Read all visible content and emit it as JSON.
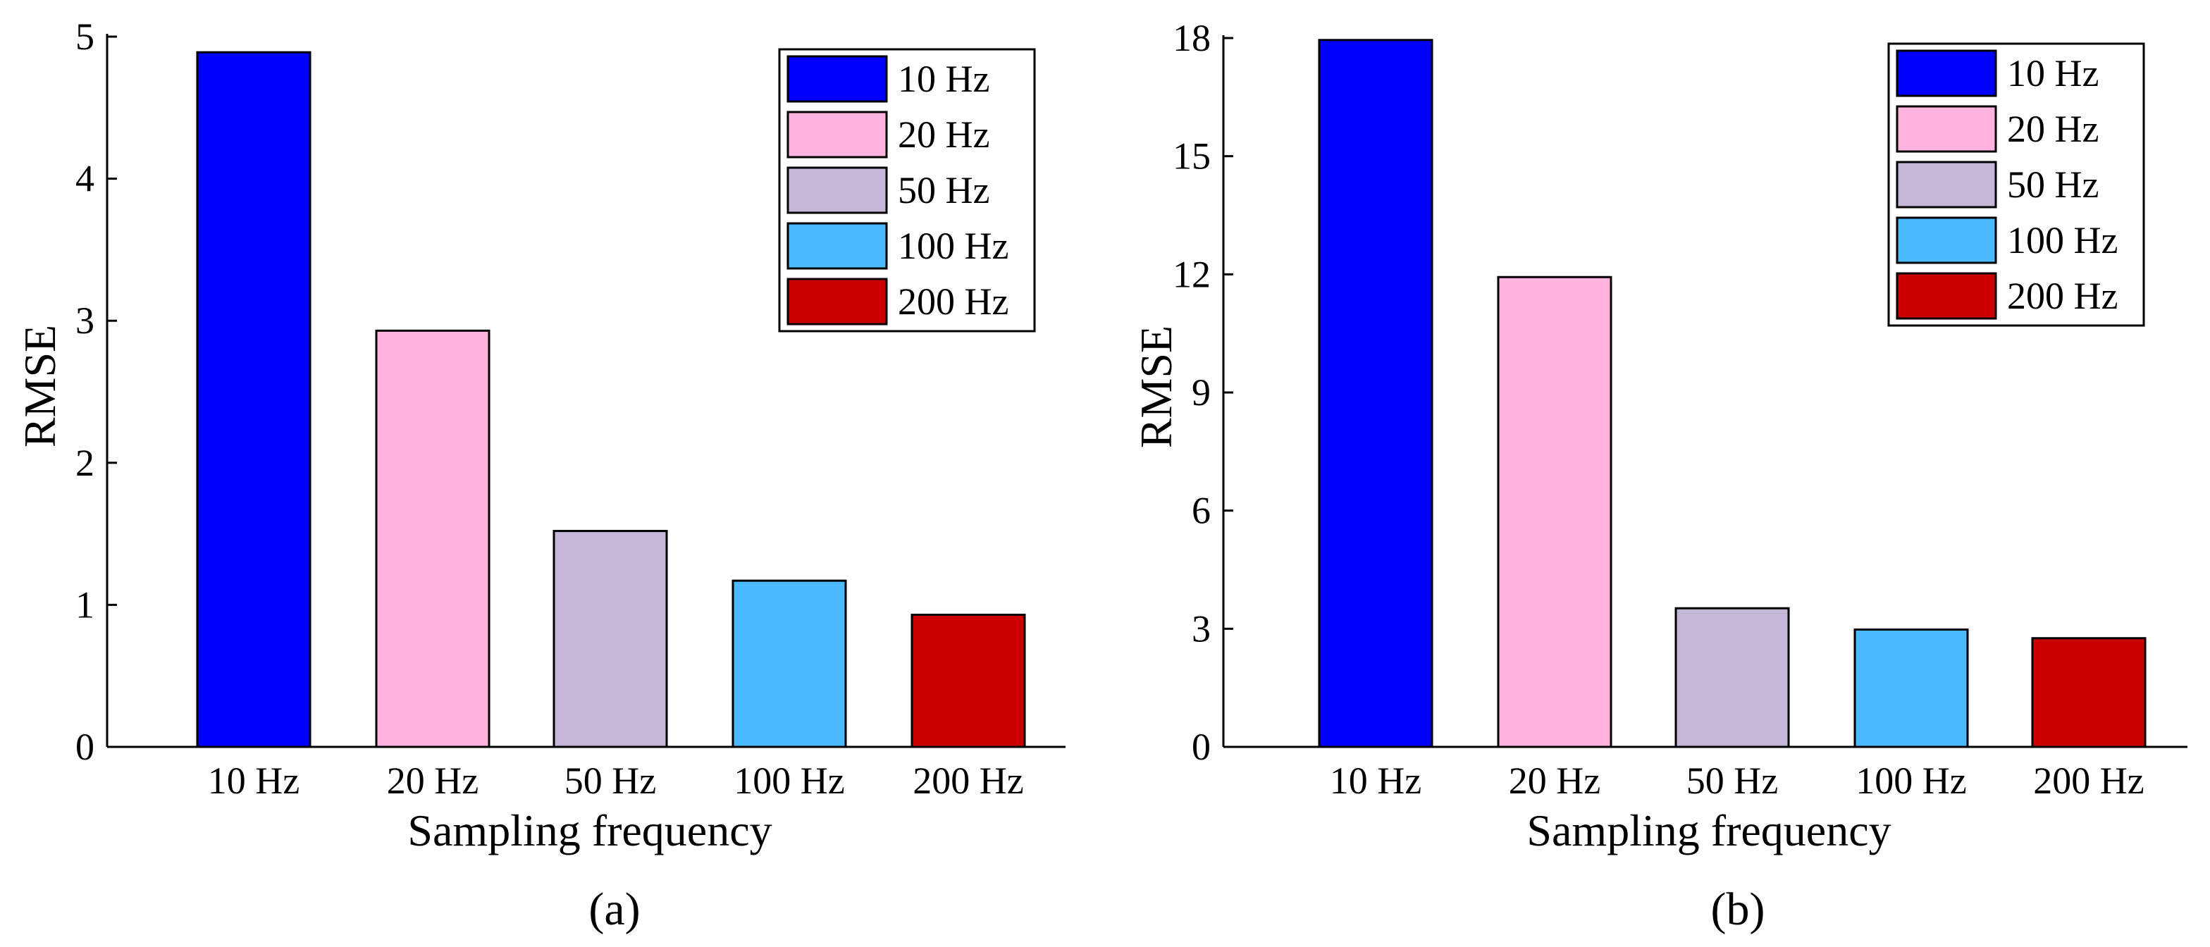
{
  "chart_data": [
    {
      "panel": "(a)",
      "type": "bar",
      "categories": [
        "10 Hz",
        "20 Hz",
        "50 Hz",
        "100 Hz",
        "200 Hz"
      ],
      "values": [
        4.89,
        2.93,
        1.52,
        1.17,
        0.93
      ],
      "colors": [
        "#0000ff",
        "#ffb3de",
        "#c5b7d8",
        "#4ab9fd",
        "#cc0000"
      ],
      "xlabel": "Sampling frequency",
      "ylabel": "RMSE",
      "ylim": [
        0,
        5
      ],
      "yticks": [
        "0",
        "1",
        "2",
        "3",
        "4",
        "5"
      ],
      "legend": {
        "placement": "top-right",
        "entries": [
          "10 Hz",
          "20 Hz",
          "50 Hz",
          "100 Hz",
          "200 Hz"
        ]
      },
      "grid": false
    },
    {
      "panel": "(b)",
      "type": "bar",
      "categories": [
        "10 Hz",
        "20 Hz",
        "50 Hz",
        "100 Hz",
        "200 Hz"
      ],
      "values": [
        17.95,
        11.93,
        3.52,
        2.98,
        2.76
      ],
      "colors": [
        "#0000ff",
        "#ffb3de",
        "#c5b7d8",
        "#4ab9fd",
        "#cc0000"
      ],
      "xlabel": "Sampling frequency",
      "ylabel": "RMSE",
      "ylim": [
        0,
        18
      ],
      "yticks": [
        "0",
        "3",
        "6",
        "9",
        "12",
        "15",
        "18"
      ],
      "legend": {
        "placement": "top-right",
        "entries": [
          "10 Hz",
          "20 Hz",
          "50 Hz",
          "100 Hz",
          "200 Hz"
        ]
      },
      "grid": false
    }
  ]
}
